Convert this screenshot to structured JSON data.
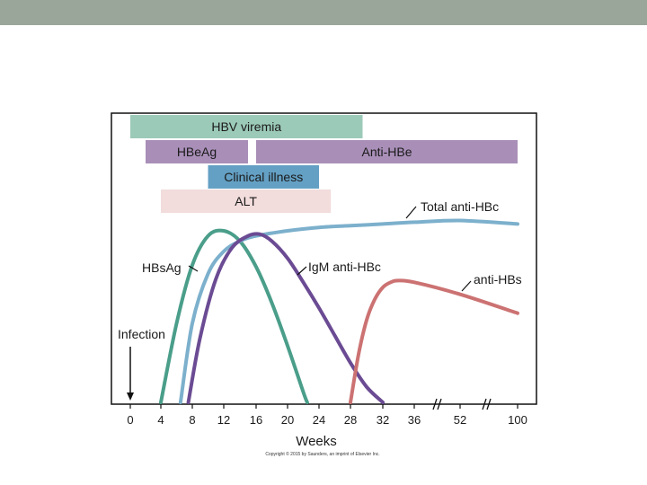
{
  "chart_data": {
    "type": "line",
    "xlabel": "Weeks",
    "x_ticks": [
      "0",
      "4",
      "8",
      "12",
      "16",
      "20",
      "24",
      "28",
      "32",
      "36",
      "52",
      "100"
    ],
    "xlim": [
      0,
      100
    ],
    "axis_break_between": [
      [
        "36",
        "52"
      ],
      [
        "52",
        "100"
      ]
    ],
    "bars": [
      {
        "label": "HBV viremia",
        "start": 0,
        "end": 29.5,
        "color": "#9ccab9"
      },
      {
        "label": "HBeAg",
        "start": 2,
        "end": 15,
        "color": "#a98fb8"
      },
      {
        "label": "Anti-HBe",
        "start": 16,
        "end": 100,
        "color": "#a98fb8"
      },
      {
        "label": "Clinical illness",
        "start": 10,
        "end": 24,
        "color": "#64a0c4"
      },
      {
        "label": "ALT",
        "start": 4,
        "end": 25.5,
        "color": "#f2dcdc"
      }
    ],
    "series": [
      {
        "name": "HBsAg",
        "color": "#4a9e8a",
        "x": [
          4,
          6,
          8,
          10,
          12,
          14,
          16,
          18,
          20,
          22,
          22.5
        ],
        "y": [
          0,
          0.46,
          0.8,
          0.97,
          1.0,
          0.94,
          0.79,
          0.58,
          0.33,
          0.06,
          0.0
        ]
      },
      {
        "name": "Total anti-HBc",
        "color": "#7cb0cc",
        "x": [
          6.5,
          8,
          10,
          12,
          14,
          16,
          20,
          24,
          28,
          32,
          36,
          52,
          100
        ],
        "y": [
          0,
          0.46,
          0.75,
          0.88,
          0.94,
          0.97,
          1.0,
          1.02,
          1.03,
          1.04,
          1.05,
          1.06,
          1.04
        ]
      },
      {
        "name": "IgM anti-HBc",
        "color": "#6b4b93",
        "x": [
          7.5,
          9,
          11,
          13,
          15,
          16.5,
          18,
          20,
          22,
          24,
          26,
          28,
          30,
          32
        ],
        "y": [
          0,
          0.38,
          0.72,
          0.9,
          0.97,
          0.98,
          0.94,
          0.84,
          0.7,
          0.55,
          0.39,
          0.23,
          0.09,
          0.0
        ]
      },
      {
        "name": "anti-HBs",
        "color": "#cc7272",
        "x": [
          28,
          29,
          30,
          31,
          32,
          33,
          34,
          36,
          52,
          100
        ],
        "y": [
          0,
          0.28,
          0.48,
          0.6,
          0.67,
          0.7,
          0.71,
          0.7,
          0.63,
          0.52
        ]
      }
    ],
    "annotations": {
      "infection": "Infection"
    },
    "grid": false
  },
  "footer": {
    "copyright": "Copyright © 2015 by Saunders, an imprint of Elsevier Inc."
  }
}
